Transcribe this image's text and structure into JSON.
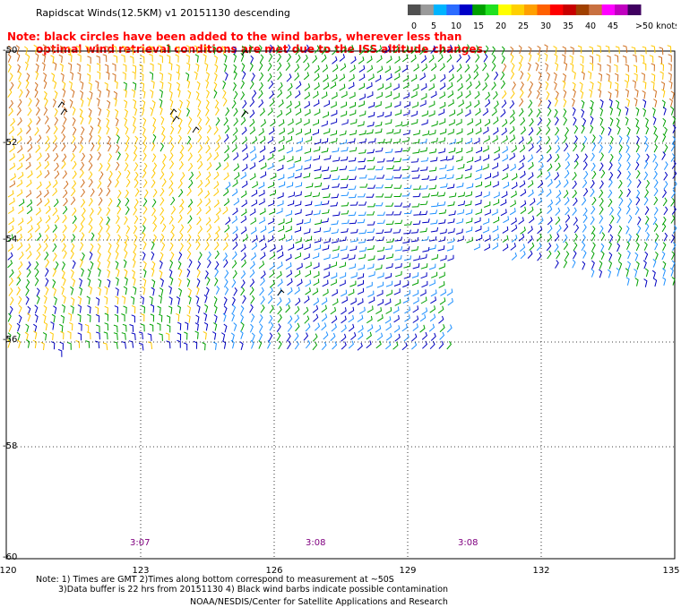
{
  "header": {
    "title": "Rapidscat Winds(12.5KM) v1 20151130 descending",
    "note_line1": "Note: black circles have been added to the wind barbs, wherever less than",
    "note_line2": "optimal wind retrieval conditions are met due to the ISS altitude changes."
  },
  "legend": {
    "labels": [
      "0",
      "5",
      "10",
      "15",
      "20",
      "25",
      "30",
      "35",
      "40",
      "45",
      ">50 knots"
    ],
    "colors": [
      "#505050",
      "#9a9a9a",
      "#00b4ff",
      "#2c6cff",
      "#0000c8",
      "#00a000",
      "#20e020",
      "#ffff00",
      "#ffd000",
      "#ffa000",
      "#ff6000",
      "#ff0000",
      "#c80000",
      "#a04000",
      "#c87040",
      "#ff00ff",
      "#c000c0",
      "#400060"
    ]
  },
  "axes": {
    "lat_labels": [
      "-50",
      "-52",
      "-54",
      "-56",
      "-58",
      "-60"
    ],
    "lon_labels": [
      "120",
      "123",
      "126",
      "129",
      "132",
      "135"
    ]
  },
  "time_labels": [
    "3:07",
    "3:08",
    "3:08"
  ],
  "footer": {
    "note_line1": "Note: 1) Times are GMT 2)Times along bottom correspond to measurement at ~50S",
    "note_line2": "3)Data buffer is 22 hrs from 20151130 4) Black wind barbs indicate possible contamination",
    "credit": "NOAA/NESDIS/Center for Satellite Applications and Research"
  },
  "colors": {
    "calm": "#1e90ff",
    "light": "#0000c0",
    "moderate": "#00a000",
    "fresh": "#ffc800",
    "strong": "#d07020",
    "contaminated": "#000000"
  }
}
